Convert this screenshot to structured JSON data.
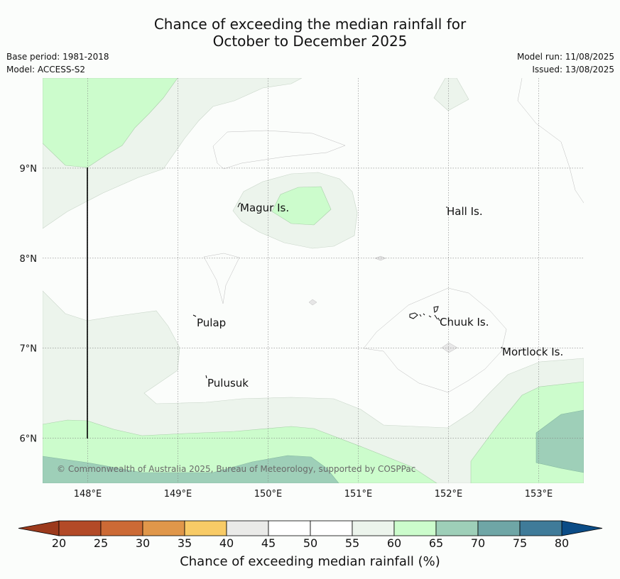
{
  "title": {
    "line1": "Chance of exceeding the median rainfall for",
    "line2": "October to December 2025"
  },
  "meta": {
    "base_period": "Base period: 1981-2018",
    "model": "Model: ACCESS-S2",
    "model_run": "Model run: 11/08/2025",
    "issued": "Issued: 13/08/2025"
  },
  "map": {
    "lon_range": [
      147.5,
      153.5
    ],
    "lat_range": [
      5.5,
      10.0
    ],
    "lon_ticks": [
      "148°E",
      "149°E",
      "150°E",
      "151°E",
      "152°E",
      "153°E"
    ],
    "lat_ticks": [
      "9°N",
      "8°N",
      "7°N",
      "6°N"
    ],
    "places": [
      "Magur Is.",
      "Hall Is.",
      "Pulap",
      "Chuuk Is.",
      "Mortlock Is.",
      "Pulusuk"
    ],
    "copyright": "© Commonwealth of Australia 2025, Bureau of Meteorology, supported by COSPPac"
  },
  "colorbar": {
    "title": "Chance of exceeding median rainfall (%)",
    "ticks": [
      "20",
      "25",
      "30",
      "35",
      "40",
      "45",
      "50",
      "55",
      "60",
      "65",
      "70",
      "75",
      "80"
    ],
    "colors": {
      "under": "#9c3a1c",
      "over": "#0b4c86",
      "bins": [
        "#b34a27",
        "#cc6a35",
        "#e0974a",
        "#f8cb66",
        "#eaeae8",
        "#ffffff",
        "#ffffff",
        "#ecf4ec",
        "#ccfccc",
        "#9ecfb8",
        "#6fa6a6",
        "#3f7b99"
      ]
    }
  }
}
